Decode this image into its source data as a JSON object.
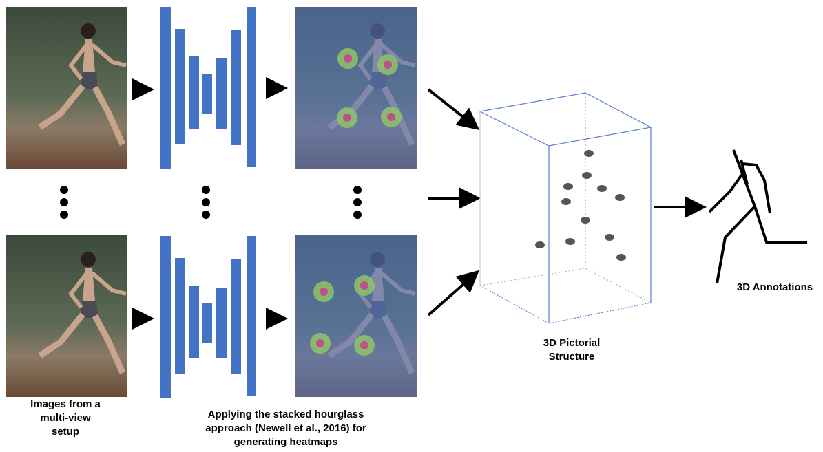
{
  "labels": {
    "input": {
      "lines": [
        "Images from a",
        "multi-view",
        "setup"
      ]
    },
    "hourglass": {
      "lines": [
        "Applying the stacked hourglass",
        "approach (Newell et al., 2016) for",
        "generating heatmaps"
      ]
    },
    "pictorial": {
      "lines": [
        "3D Pictorial",
        "Structure"
      ]
    },
    "output": {
      "lines": [
        "3D Annotations"
      ]
    }
  }
}
